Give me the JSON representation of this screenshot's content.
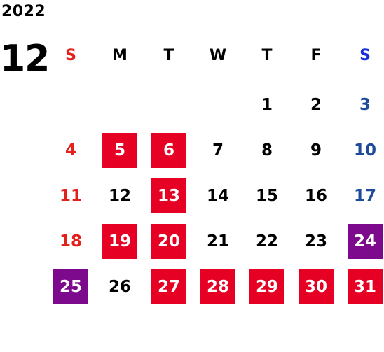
{
  "year": "2022",
  "month": "12",
  "weekdays": [
    "S",
    "M",
    "T",
    "W",
    "T",
    "F",
    "S"
  ],
  "colors": {
    "sunday_text": "#e3211c",
    "saturday_text": "#1e4a9a",
    "saturday_header": "#1a2ed8",
    "highlight_red": "#e60023",
    "highlight_purple": "#7d0a8c"
  },
  "weeks": [
    [
      null,
      null,
      null,
      null,
      {
        "day": "1"
      },
      {
        "day": "2"
      },
      {
        "day": "3"
      }
    ],
    [
      {
        "day": "4"
      },
      {
        "day": "5",
        "mark": "red"
      },
      {
        "day": "6",
        "mark": "red"
      },
      {
        "day": "7"
      },
      {
        "day": "8"
      },
      {
        "day": "9"
      },
      {
        "day": "10"
      }
    ],
    [
      {
        "day": "11"
      },
      {
        "day": "12"
      },
      {
        "day": "13",
        "mark": "red"
      },
      {
        "day": "14"
      },
      {
        "day": "15"
      },
      {
        "day": "16"
      },
      {
        "day": "17"
      }
    ],
    [
      {
        "day": "18"
      },
      {
        "day": "19",
        "mark": "red"
      },
      {
        "day": "20",
        "mark": "red"
      },
      {
        "day": "21"
      },
      {
        "day": "22"
      },
      {
        "day": "23"
      },
      {
        "day": "24",
        "mark": "purple"
      }
    ],
    [
      {
        "day": "25",
        "mark": "purple"
      },
      {
        "day": "26"
      },
      {
        "day": "27",
        "mark": "red"
      },
      {
        "day": "28",
        "mark": "red"
      },
      {
        "day": "29",
        "mark": "red"
      },
      {
        "day": "30",
        "mark": "red"
      },
      {
        "day": "31",
        "mark": "red"
      }
    ]
  ]
}
